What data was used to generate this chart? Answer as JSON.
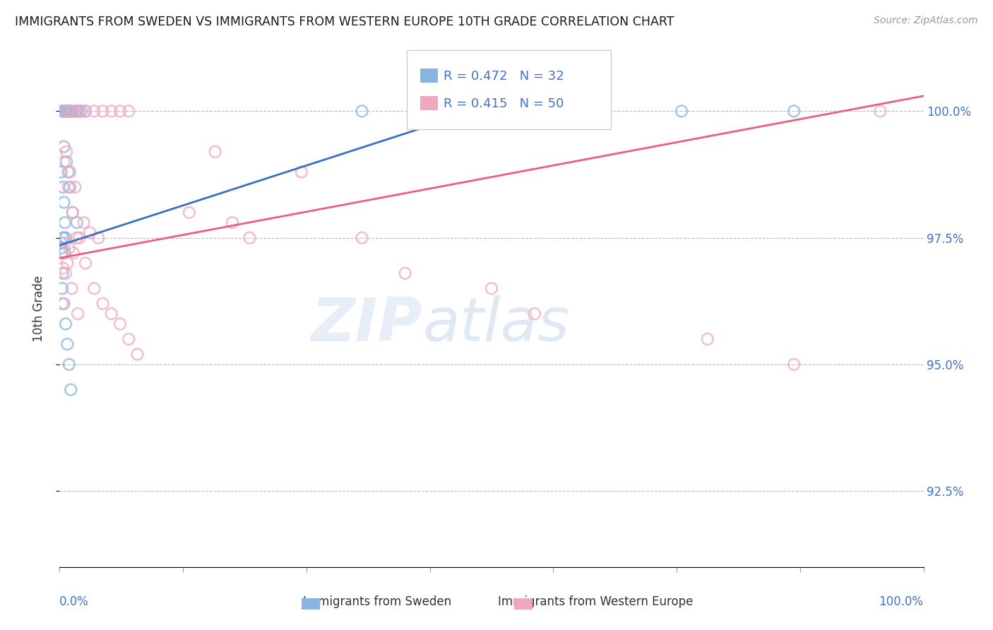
{
  "title": "IMMIGRANTS FROM SWEDEN VS IMMIGRANTS FROM WESTERN EUROPE 10TH GRADE CORRELATION CHART",
  "source": "Source: ZipAtlas.com",
  "ylabel": "10th Grade",
  "y_tick_labels": [
    "92.5%",
    "95.0%",
    "97.5%",
    "100.0%"
  ],
  "y_tick_values": [
    92.5,
    95.0,
    97.5,
    100.0
  ],
  "ylim": [
    91.0,
    101.2
  ],
  "xlim": [
    0.0,
    100.0
  ],
  "blue_color": "#8ab4e0",
  "pink_color": "#f2a8bc",
  "blue_line_color": "#3a6fc4",
  "pink_line_color": "#e8607a",
  "blue_scatter_x": [
    0.3,
    0.5,
    0.6,
    0.8,
    0.9,
    1.0,
    1.1,
    1.2,
    1.3,
    1.5,
    1.8,
    2.0,
    2.2,
    2.5,
    3.0,
    0.2,
    0.4,
    0.5,
    0.6,
    0.7,
    0.3,
    0.4,
    0.15,
    0.25,
    0.35,
    35.0,
    42.0,
    48.0,
    55.0,
    62.0,
    72.0,
    85.0
  ],
  "blue_scatter_y": [
    100.0,
    100.0,
    100.0,
    100.0,
    100.0,
    100.0,
    100.0,
    100.0,
    100.0,
    100.0,
    100.0,
    100.0,
    100.0,
    100.0,
    100.0,
    98.8,
    98.5,
    98.2,
    97.8,
    97.5,
    97.3,
    97.5,
    97.4,
    97.2,
    96.8,
    100.0,
    100.0,
    100.0,
    100.0,
    100.0,
    100.0,
    100.0
  ],
  "blue_scatter_x2": [
    0.5,
    0.8,
    1.0,
    1.2,
    1.5,
    2.0,
    0.4,
    0.6,
    0.3,
    0.5,
    0.7,
    0.9,
    1.1,
    1.3
  ],
  "blue_scatter_y2": [
    99.3,
    99.0,
    98.8,
    98.5,
    98.0,
    97.8,
    97.5,
    97.2,
    96.5,
    96.2,
    95.8,
    95.4,
    95.0,
    94.5
  ],
  "pink_scatter_x": [
    0.5,
    1.0,
    1.5,
    2.0,
    2.5,
    3.0,
    4.0,
    5.0,
    6.0,
    7.0,
    8.0,
    0.8,
    1.2,
    1.8,
    2.8,
    3.5,
    4.5,
    0.6,
    1.1,
    1.6,
    2.3,
    0.4,
    0.7,
    1.4,
    0.3,
    0.9,
    2.1,
    18.0,
    22.0,
    28.0,
    35.0,
    40.0,
    50.0,
    0.5,
    1.0,
    1.5,
    2.0,
    3.0,
    4.0,
    5.0,
    6.0,
    7.0,
    8.0,
    9.0,
    15.0,
    20.0,
    55.0,
    75.0,
    85.0,
    95.0
  ],
  "pink_scatter_y": [
    100.0,
    100.0,
    100.0,
    100.0,
    100.0,
    100.0,
    100.0,
    100.0,
    100.0,
    100.0,
    100.0,
    99.2,
    98.8,
    98.5,
    97.8,
    97.6,
    97.5,
    97.4,
    97.3,
    97.2,
    97.5,
    96.9,
    96.8,
    96.5,
    96.2,
    97.0,
    96.0,
    99.2,
    97.5,
    98.8,
    97.5,
    96.8,
    96.5,
    99.0,
    98.5,
    98.0,
    97.5,
    97.0,
    96.5,
    96.2,
    96.0,
    95.8,
    95.5,
    95.2,
    98.0,
    97.8,
    96.0,
    95.5,
    95.0,
    100.0
  ],
  "blue_line_x0": 0.0,
  "blue_line_y0": 97.35,
  "blue_line_x1": 48.0,
  "blue_line_y1": 100.0,
  "pink_line_x0": 0.0,
  "pink_line_y0": 97.1,
  "pink_line_x1": 100.0,
  "pink_line_y1": 100.3,
  "watermark_zip": "ZIP",
  "watermark_atlas": "atlas",
  "legend_text": [
    [
      "R = 0.472",
      "N = 32"
    ],
    [
      "R = 0.415",
      "N = 50"
    ]
  ]
}
